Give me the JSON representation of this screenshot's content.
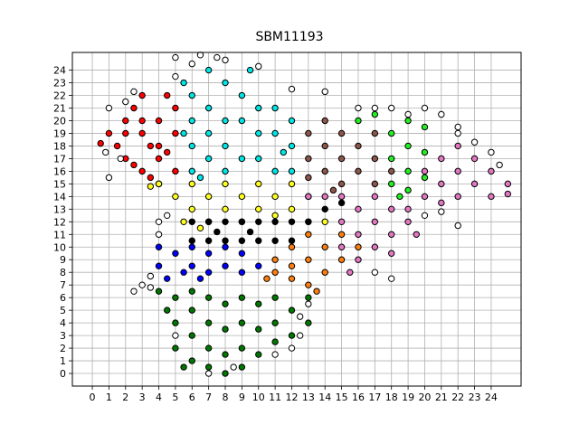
{
  "chart_data": {
    "type": "scatter",
    "title": "SBM11193",
    "xlabel": "",
    "ylabel": "",
    "xlim": [
      -1.2,
      25.8
    ],
    "ylim": [
      -1.0,
      25.4
    ],
    "grid": true,
    "x_ticks": [
      "0",
      "1",
      "2",
      "3",
      "4",
      "5",
      "6",
      "7",
      "8",
      "9",
      "10",
      "11",
      "12",
      "13",
      "14",
      "15",
      "16",
      "17",
      "18",
      "19",
      "20",
      "21",
      "22",
      "23",
      "24"
    ],
    "y_ticks": [
      "0",
      "1",
      "2",
      "3",
      "4",
      "5",
      "6",
      "7",
      "8",
      "9",
      "10",
      "11",
      "12",
      "13",
      "14",
      "15",
      "16",
      "17",
      "18",
      "19",
      "20",
      "21",
      "22",
      "23",
      "24"
    ],
    "marker_edge_color": "#000000",
    "clusters": [
      {
        "color": "#ff0000",
        "points": [
          [
            1,
            19
          ],
          [
            1.5,
            18
          ],
          [
            2,
            20
          ],
          [
            2,
            17
          ],
          [
            2.5,
            21
          ],
          [
            3,
            22
          ],
          [
            3,
            19
          ],
          [
            3,
            16
          ],
          [
            3.5,
            18
          ],
          [
            4,
            20
          ],
          [
            4,
            17
          ],
          [
            4,
            15
          ],
          [
            4.5,
            22
          ],
          [
            5,
            21
          ],
          [
            5,
            19
          ],
          [
            5,
            16
          ],
          [
            2,
            19
          ],
          [
            3,
            20
          ],
          [
            4,
            18
          ],
          [
            3.5,
            15.5
          ],
          [
            2.5,
            16.5
          ],
          [
            4.5,
            17.5
          ],
          [
            0.5,
            18.2
          ]
        ]
      },
      {
        "color": "#00e5e5",
        "points": [
          [
            5.5,
            23
          ],
          [
            6,
            22
          ],
          [
            6,
            20
          ],
          [
            6,
            18
          ],
          [
            6,
            16
          ],
          [
            7,
            24
          ],
          [
            7,
            21
          ],
          [
            7,
            19
          ],
          [
            7,
            17
          ],
          [
            8,
            23
          ],
          [
            8,
            20
          ],
          [
            8,
            18
          ],
          [
            8,
            16
          ],
          [
            9,
            22
          ],
          [
            9,
            20
          ],
          [
            9,
            17
          ],
          [
            10,
            21
          ],
          [
            10,
            19
          ],
          [
            10,
            17
          ],
          [
            11,
            21
          ],
          [
            11,
            19
          ],
          [
            11,
            16
          ],
          [
            12,
            20
          ],
          [
            12,
            18
          ],
          [
            12,
            16
          ],
          [
            5.5,
            19
          ],
          [
            6.5,
            15.5
          ],
          [
            9.5,
            24
          ],
          [
            11.5,
            17.5
          ]
        ]
      },
      {
        "color": "#ffff22",
        "points": [
          [
            5,
            14
          ],
          [
            5.5,
            12
          ],
          [
            6,
            15
          ],
          [
            6,
            13
          ],
          [
            7,
            14
          ],
          [
            7,
            12
          ],
          [
            8,
            15
          ],
          [
            8,
            13
          ],
          [
            9,
            14
          ],
          [
            9,
            12
          ],
          [
            10,
            15
          ],
          [
            10,
            13
          ],
          [
            11,
            14
          ],
          [
            11,
            12.5
          ],
          [
            12,
            13
          ],
          [
            12,
            15
          ],
          [
            13,
            12
          ],
          [
            13,
            14
          ],
          [
            14,
            12
          ],
          [
            4,
            15
          ],
          [
            3.5,
            14.8
          ],
          [
            6.5,
            11.5
          ]
        ]
      },
      {
        "color": "#000000",
        "points": [
          [
            6,
            12
          ],
          [
            6,
            10.5
          ],
          [
            7,
            12
          ],
          [
            7,
            10.5
          ],
          [
            8,
            12
          ],
          [
            8,
            10.5
          ],
          [
            9,
            12
          ],
          [
            9,
            10.5
          ],
          [
            10,
            12
          ],
          [
            10,
            10.5
          ],
          [
            11,
            12
          ],
          [
            11,
            10.5
          ],
          [
            12,
            12
          ],
          [
            12,
            10.5
          ],
          [
            13,
            12
          ],
          [
            14,
            13
          ],
          [
            15,
            13.5
          ],
          [
            9.5,
            11.2
          ],
          [
            7.5,
            11.2
          ]
        ]
      },
      {
        "color": "#0000ff",
        "points": [
          [
            4,
            10
          ],
          [
            4,
            8.5
          ],
          [
            4.5,
            7.5
          ],
          [
            5,
            9.5
          ],
          [
            5.5,
            8
          ],
          [
            6,
            10
          ],
          [
            6,
            8.5
          ],
          [
            7,
            9.5
          ],
          [
            7,
            8
          ],
          [
            8,
            10
          ],
          [
            8,
            8.5
          ],
          [
            9,
            9.5
          ],
          [
            9,
            8
          ],
          [
            10,
            8.5
          ],
          [
            6.5,
            7.5
          ]
        ]
      },
      {
        "color": "#ff7f0e",
        "points": [
          [
            11,
            9
          ],
          [
            11,
            8
          ],
          [
            12,
            10
          ],
          [
            12,
            8.5
          ],
          [
            12,
            7.5
          ],
          [
            13,
            11
          ],
          [
            13,
            9
          ],
          [
            13,
            7
          ],
          [
            14,
            10
          ],
          [
            14,
            8
          ],
          [
            15,
            11
          ],
          [
            15,
            9
          ],
          [
            16,
            10
          ],
          [
            10.5,
            7.5
          ],
          [
            13.5,
            6.5
          ]
        ]
      },
      {
        "color": "#007700",
        "points": [
          [
            4,
            6.5
          ],
          [
            5,
            6
          ],
          [
            5,
            4
          ],
          [
            5,
            2
          ],
          [
            6,
            6.5
          ],
          [
            6,
            5
          ],
          [
            6,
            3
          ],
          [
            6,
            1
          ],
          [
            7,
            6
          ],
          [
            7,
            4
          ],
          [
            7,
            2
          ],
          [
            7,
            0.5
          ],
          [
            8,
            5.5
          ],
          [
            8,
            3.5
          ],
          [
            8,
            1.5
          ],
          [
            9,
            6
          ],
          [
            9,
            4
          ],
          [
            9,
            2
          ],
          [
            9,
            0.5
          ],
          [
            10,
            5.5
          ],
          [
            10,
            3.5
          ],
          [
            10,
            1.5
          ],
          [
            11,
            6
          ],
          [
            11,
            4
          ],
          [
            11,
            2.5
          ],
          [
            12,
            5
          ],
          [
            12,
            3
          ],
          [
            13,
            6
          ],
          [
            13,
            4
          ],
          [
            4.5,
            5
          ],
          [
            5.5,
            0.5
          ],
          [
            8,
            0
          ]
        ]
      },
      {
        "color": "#8c564b",
        "points": [
          [
            13,
            19
          ],
          [
            13,
            17
          ],
          [
            13,
            15.5
          ],
          [
            14,
            20
          ],
          [
            14,
            18
          ],
          [
            14,
            16
          ],
          [
            15,
            19
          ],
          [
            15,
            17
          ],
          [
            15,
            15
          ],
          [
            16,
            18
          ],
          [
            16,
            16
          ],
          [
            17,
            19
          ],
          [
            17,
            17
          ],
          [
            17,
            15
          ],
          [
            18,
            16
          ],
          [
            14.5,
            14.5
          ]
        ]
      },
      {
        "color": "#22ee22",
        "points": [
          [
            16,
            20
          ],
          [
            17,
            20.5
          ],
          [
            18,
            19
          ],
          [
            18,
            17
          ],
          [
            18,
            15
          ],
          [
            19,
            20
          ],
          [
            19,
            18
          ],
          [
            19,
            16
          ],
          [
            19,
            14.5
          ],
          [
            20,
            17.5
          ],
          [
            20,
            15.5
          ],
          [
            18.5,
            14
          ],
          [
            20,
            19.5
          ]
        ]
      },
      {
        "color": "#e377c2",
        "points": [
          [
            13,
            14
          ],
          [
            14,
            14
          ],
          [
            15,
            14
          ],
          [
            15,
            12
          ],
          [
            15,
            10
          ],
          [
            16,
            13
          ],
          [
            16,
            11
          ],
          [
            16,
            9
          ],
          [
            17,
            14
          ],
          [
            17,
            12
          ],
          [
            17,
            10
          ],
          [
            18,
            13
          ],
          [
            18,
            11
          ],
          [
            19,
            13
          ],
          [
            19,
            12
          ],
          [
            20,
            14
          ],
          [
            20,
            16
          ],
          [
            21,
            17
          ],
          [
            21,
            15
          ],
          [
            21,
            13.5
          ],
          [
            22,
            18
          ],
          [
            22,
            16
          ],
          [
            22,
            14
          ],
          [
            23,
            17
          ],
          [
            23,
            15
          ],
          [
            24,
            16
          ],
          [
            24,
            14
          ],
          [
            25,
            15
          ],
          [
            25,
            14.2
          ],
          [
            19.5,
            11
          ],
          [
            18,
            9.5
          ],
          [
            15.5,
            8
          ]
        ]
      },
      {
        "color": "#ffffff",
        "points": [
          [
            5,
            23.5
          ],
          [
            6,
            24.5
          ],
          [
            8,
            24.8
          ],
          [
            10,
            24.3
          ],
          [
            12,
            22.5
          ],
          [
            14,
            22.3
          ],
          [
            2,
            21.5
          ],
          [
            2.5,
            22.3
          ],
          [
            1,
            21
          ],
          [
            0.8,
            17.5
          ],
          [
            1,
            15.5
          ],
          [
            1.7,
            17
          ],
          [
            4,
            12
          ],
          [
            4.5,
            12.5
          ],
          [
            4,
            11
          ],
          [
            3,
            7
          ],
          [
            3.5,
            6.8
          ],
          [
            2.5,
            6.5
          ],
          [
            3.5,
            7.7
          ],
          [
            5,
            3
          ],
          [
            7,
            0
          ],
          [
            8.5,
            0.5
          ],
          [
            11,
            1.5
          ],
          [
            12,
            2
          ],
          [
            12.5,
            3
          ],
          [
            12.5,
            4.5
          ],
          [
            13,
            5.5
          ],
          [
            16,
            21
          ],
          [
            17,
            21
          ],
          [
            18,
            21
          ],
          [
            19,
            20.5
          ],
          [
            20,
            21
          ],
          [
            21,
            20.5
          ],
          [
            22,
            19.5
          ],
          [
            22,
            19
          ],
          [
            23,
            18.3
          ],
          [
            24,
            17.5
          ],
          [
            24.5,
            16.5
          ],
          [
            20,
            12.5
          ],
          [
            21,
            12.8
          ],
          [
            22,
            11.7
          ],
          [
            17,
            8
          ],
          [
            18,
            7.5
          ],
          [
            7.5,
            25
          ],
          [
            6.5,
            25.2
          ],
          [
            5,
            25
          ]
        ]
      }
    ]
  }
}
